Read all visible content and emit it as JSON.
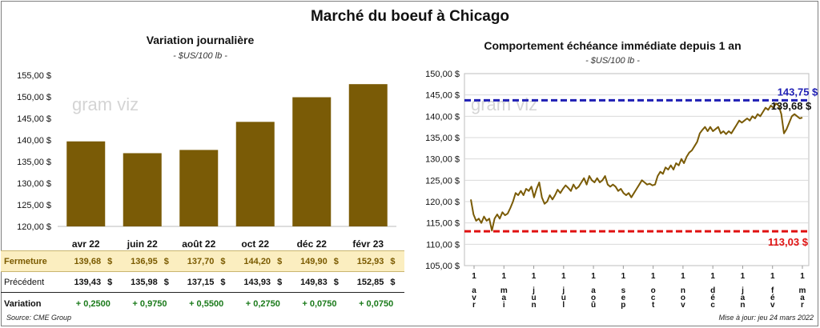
{
  "title": "Marché du boeuf à Chicago",
  "unit": "- $US/100 lb -",
  "watermark": "gram viz",
  "source": "Source: CME Group",
  "updated": "Mise à jour: jeu 24 mars 2022",
  "table": {
    "rows": [
      {
        "label": "Fermeture",
        "values": [
          "139,68",
          "136,95",
          "137,70",
          "144,20",
          "149,90",
          "152,93"
        ]
      },
      {
        "label": "Précédent",
        "values": [
          "139,43",
          "135,98",
          "137,15",
          "143,93",
          "149,83",
          "152,85"
        ]
      },
      {
        "label": "Variation",
        "values": [
          "+ 0,2500",
          "+ 0,9750",
          "+ 0,5500",
          "+ 0,2750",
          "+ 0,0750",
          "+ 0,0750"
        ]
      }
    ],
    "currency": "$"
  },
  "colors": {
    "bar": "#7a5b06",
    "line": "#7a5b06",
    "high": "#1f1fb4",
    "low": "#e01010"
  },
  "chart_data": [
    {
      "type": "bar",
      "title": "Variation journalière",
      "subtitle": "- $US/100 lb -",
      "categories": [
        "avr 22",
        "juin 22",
        "août 22",
        "oct 22",
        "déc 22",
        "févr 23"
      ],
      "values": [
        139.68,
        136.95,
        137.7,
        144.2,
        149.9,
        152.93
      ],
      "ylim": [
        120,
        155
      ],
      "yticks": [
        "120,00 $",
        "125,00 $",
        "130,00 $",
        "135,00 $",
        "140,00 $",
        "145,00 $",
        "150,00 $",
        "155,00 $"
      ],
      "grid": false
    },
    {
      "type": "line",
      "title": "Comportement échéance immédiate depuis 1 an",
      "subtitle": "- $US/100 lb -",
      "ylim": [
        105,
        150
      ],
      "yticks": [
        "105,00 $",
        "110,00 $",
        "115,00 $",
        "120,00 $",
        "125,00 $",
        "130,00 $",
        "135,00 $",
        "140,00 $",
        "145,00 $",
        "150,00 $"
      ],
      "xticks": [
        "1 avr",
        "1 mai",
        "1 jun",
        "1 jul",
        "1 aoû",
        "1 sep",
        "1 oct",
        "1 nov",
        "1 déc",
        "1 jan",
        "1 fév",
        "1 mar"
      ],
      "high": {
        "value": 143.75,
        "label": "143,75 $"
      },
      "low": {
        "value": 113.03,
        "label": "113,03 $"
      },
      "last": {
        "value": 139.68,
        "label": "139,68 $"
      },
      "values": [
        120.5,
        117,
        115.5,
        116,
        115,
        116.5,
        115.5,
        116,
        113.2,
        116,
        117,
        116,
        117.5,
        116.8,
        117.2,
        118.5,
        120,
        122,
        121.5,
        122.5,
        121.5,
        123,
        122.5,
        123.5,
        121,
        123,
        124.5,
        121,
        119.5,
        120,
        121.5,
        120.5,
        121.5,
        122.8,
        122,
        123,
        123.8,
        123.2,
        122.5,
        124,
        123,
        123.5,
        124.5,
        125.5,
        124,
        126,
        125,
        124.5,
        125.5,
        124.5,
        125,
        126,
        124,
        123.5,
        124,
        123.5,
        122.5,
        123,
        122,
        121.5,
        122,
        121,
        122,
        123,
        124,
        125,
        124.5,
        124,
        124.2,
        123.8,
        124,
        126,
        127,
        126.5,
        128,
        127.5,
        128.5,
        127.5,
        129,
        128.5,
        130,
        129,
        130.5,
        131.5,
        132,
        133,
        134,
        136,
        136.8,
        137.5,
        136.5,
        137.5,
        136.5,
        137,
        137.5,
        136,
        136.5,
        135.8,
        136.5,
        136,
        137,
        138,
        139,
        138.5,
        139,
        139.5,
        139,
        140,
        139.5,
        140.5,
        140,
        141,
        142,
        141.5,
        142.5,
        142,
        143,
        142.5,
        140.5,
        136,
        137,
        138.5,
        140,
        140.5,
        140,
        139.5,
        139.68
      ]
    }
  ]
}
